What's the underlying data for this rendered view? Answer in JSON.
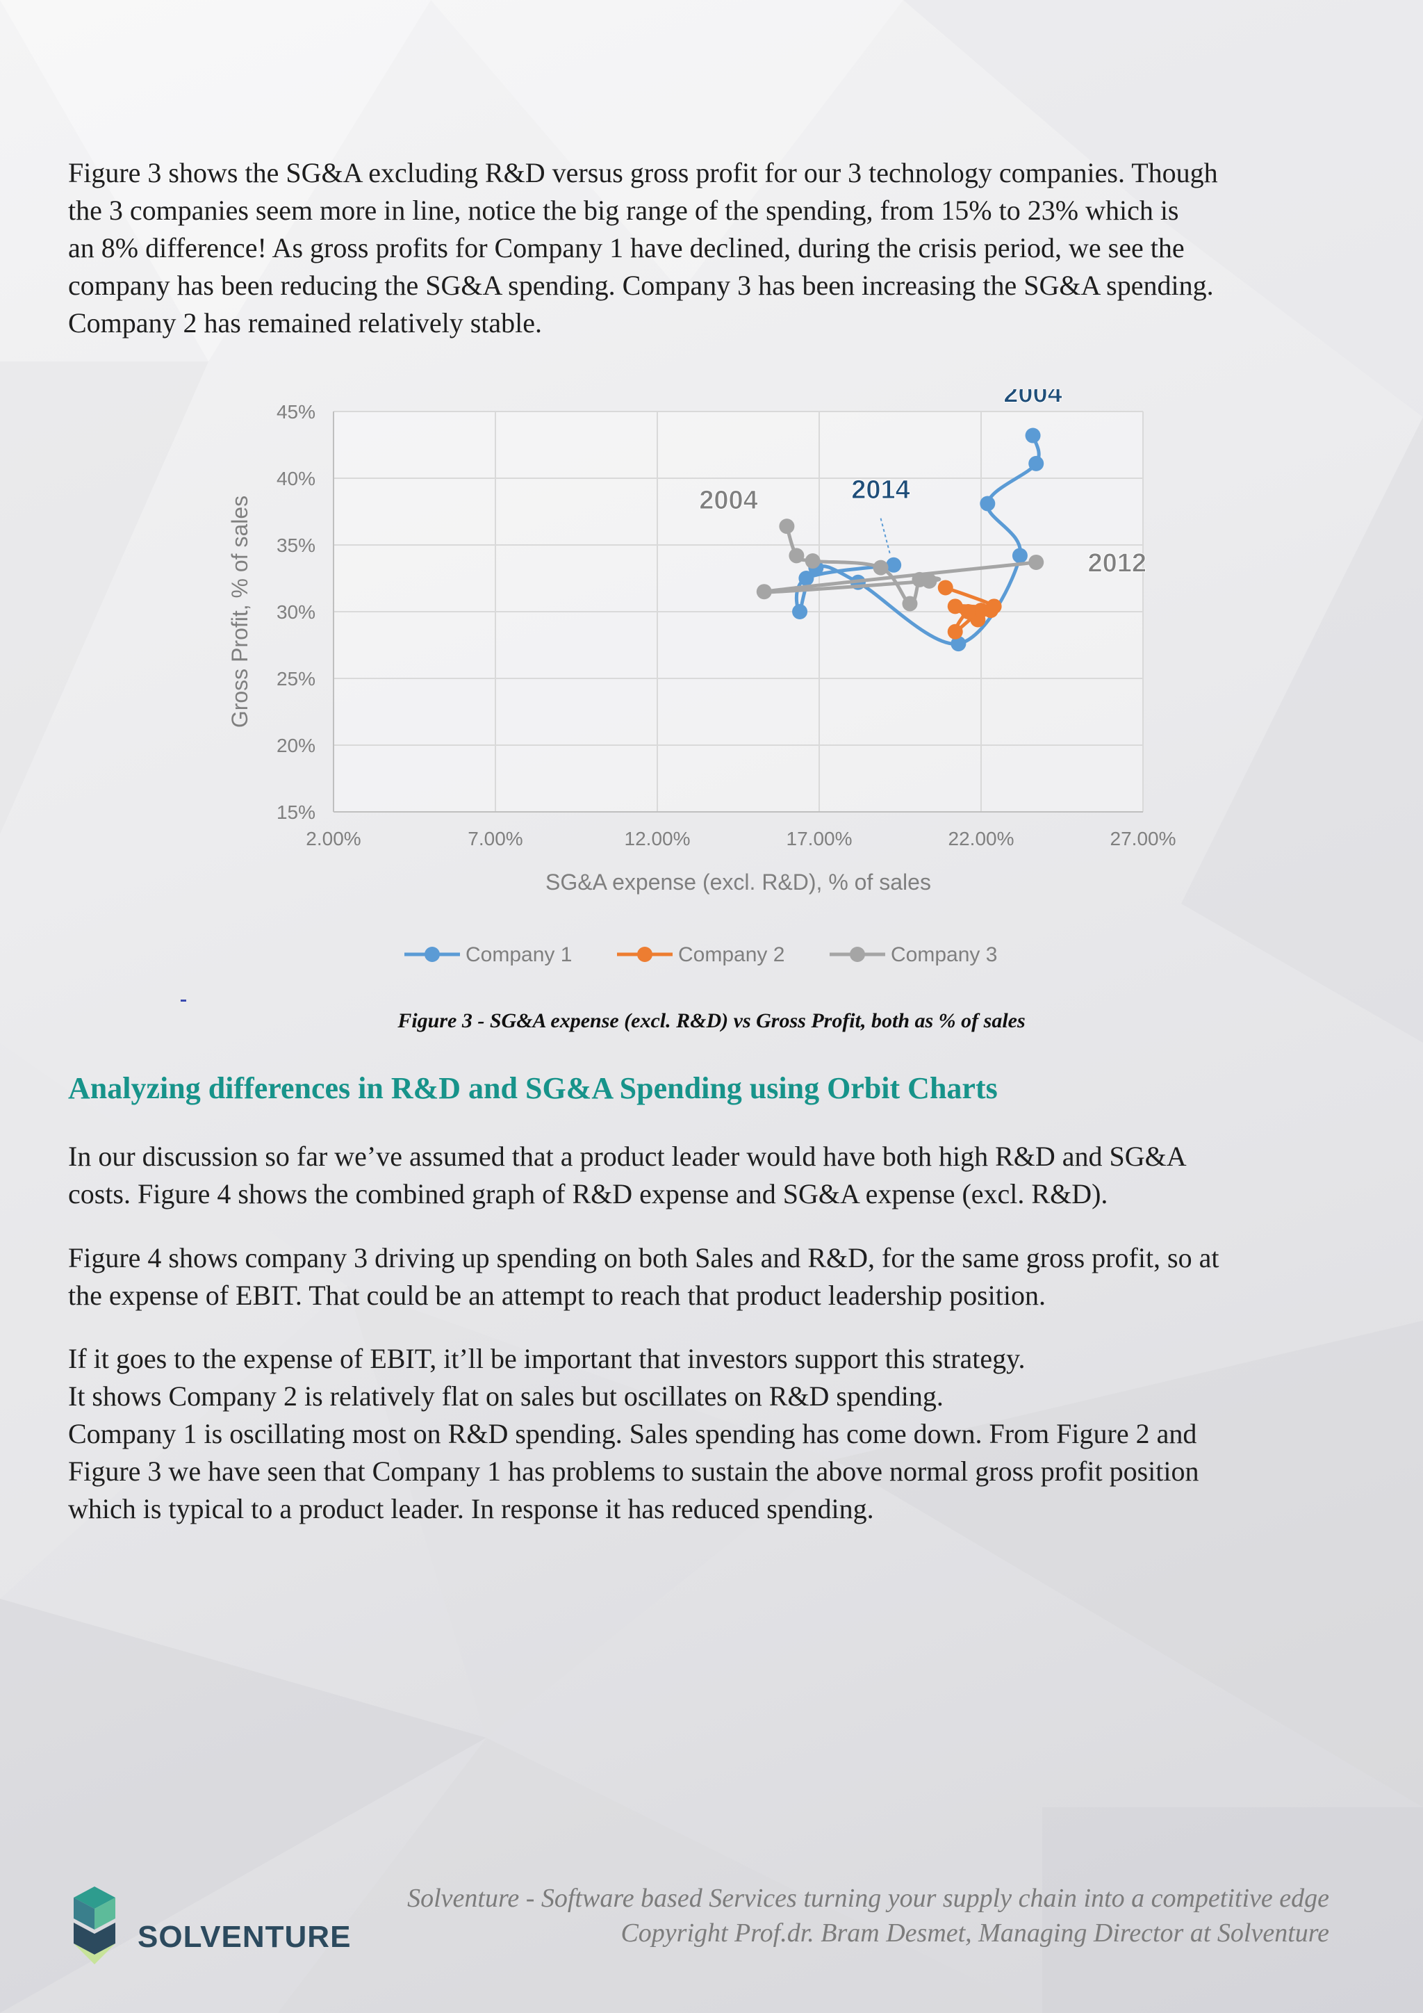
{
  "intro_paragraph": [
    "Figure 3 shows the SG&A excluding R&D versus gross profit for our 3 technology companies. Though",
    "the 3 companies seem more in line, notice the big range of the spending, from 15% to 23% which is",
    "an 8% difference! As gross profits for Company 1 have declined, during the crisis period, we see the",
    "company has been reducing the SG&A spending. Company 3 has been increasing the SG&A spending.",
    "Company 2 has remained relatively stable."
  ],
  "chart_data": {
    "type": "scatter",
    "title": "",
    "xlabel": "SG&A expense (excl. R&D), % of sales",
    "ylabel": "Gross Profit, % of sales",
    "xlim": [
      2,
      27
    ],
    "ylim": [
      15,
      45
    ],
    "x_ticks": [
      "2.00%",
      "7.00%",
      "12.00%",
      "17.00%",
      "22.00%",
      "27.00%"
    ],
    "y_ticks": [
      "15%",
      "20%",
      "25%",
      "30%",
      "35%",
      "40%",
      "45%"
    ],
    "grid": true,
    "legend_position": "bottom",
    "series": [
      {
        "name": "Company 1",
        "color": "#5b9bd5",
        "points": [
          [
            23.6,
            43.2
          ],
          [
            23.7,
            41.1
          ],
          [
            22.2,
            38.1
          ],
          [
            23.2,
            34.2
          ],
          [
            21.3,
            27.6
          ],
          [
            18.2,
            32.2
          ],
          [
            16.9,
            33.3
          ],
          [
            16.4,
            30.0
          ],
          [
            16.6,
            32.5
          ],
          [
            19.3,
            33.5
          ]
        ]
      },
      {
        "name": "Company 2",
        "color": "#ed7d31",
        "points": [
          [
            20.9,
            31.8
          ],
          [
            22.4,
            30.4
          ],
          [
            21.2,
            30.4
          ],
          [
            21.9,
            29.4
          ],
          [
            22.0,
            30.1
          ],
          [
            21.2,
            28.5
          ],
          [
            21.6,
            30.0
          ],
          [
            22.3,
            30.1
          ]
        ]
      },
      {
        "name": "Company 3",
        "color": "#a5a5a5",
        "points": [
          [
            16.0,
            36.4
          ],
          [
            16.3,
            34.2
          ],
          [
            16.8,
            33.8
          ],
          [
            18.9,
            33.3
          ],
          [
            19.8,
            30.6
          ],
          [
            20.1,
            32.4
          ],
          [
            20.4,
            32.3
          ],
          [
            15.3,
            31.5
          ],
          [
            23.7,
            33.7
          ]
        ]
      }
    ],
    "annotations": [
      {
        "text": "2004",
        "color": "#1f4e79",
        "x": 23.6,
        "y": 45.7
      },
      {
        "text": "2014",
        "color": "#1f4e79",
        "x": 18.9,
        "y": 38.5
      },
      {
        "text": "2004",
        "color": "#7f7f7f",
        "x": 14.2,
        "y": 37.7
      },
      {
        "text": "2012",
        "color": "#7f7f7f",
        "x": 26.2,
        "y": 33.0
      }
    ]
  },
  "caption": "Figure 3 - SG&A expense (excl. R&D) vs Gross Profit, both as % of sales",
  "heading": "Analyzing differences in R&D and SG&A Spending using Orbit Charts",
  "paragraph_2": [
    "In our discussion so far we’ve assumed that a product leader would have both high R&D and SG&A",
    "costs. Figure 4 shows the combined graph of R&D expense and SG&A expense (excl. R&D)."
  ],
  "paragraph_3": [
    "Figure 4 shows company 3 driving up spending on both Sales and R&D, for the same gross profit, so at",
    "the expense of EBIT. That could be an attempt to reach that product leadership position."
  ],
  "paragraph_4": [
    "If it goes to the expense of EBIT, it’ll be important that investors support this strategy.",
    "It shows Company 2 is relatively flat on sales but oscillates on R&D spending.",
    "Company 1 is oscillating most on R&D spending. Sales spending has come down. From Figure 2 and",
    "Figure 3 we have seen that Company 1 has problems to sustain the above normal gross profit position",
    "which is typical to a product leader. In response it has reduced spending."
  ],
  "footer": {
    "line1": "Solventure - Software based Services turning your supply chain into a competitive edge",
    "line2": "Copyright Prof.dr. Bram Desmet, Managing Director at Solventure",
    "logo_text": "SOLVENTURE"
  }
}
